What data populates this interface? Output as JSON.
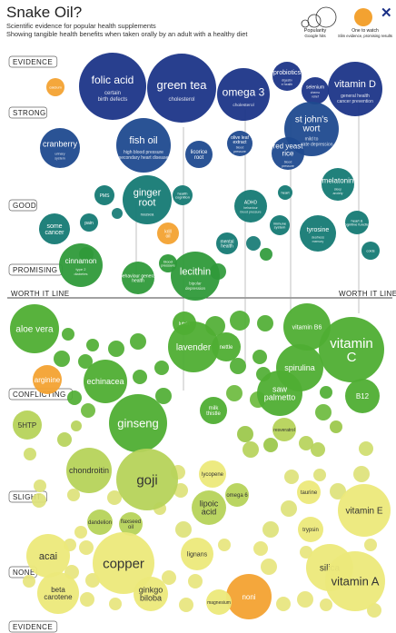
{
  "header": {
    "title": "Snake Oil?",
    "subtitle": "Scientific evidence for popular health supplements",
    "subtitle2": "Showing tangible health benefits when taken orally by an adult with a healthy diet",
    "legend_popularity": "Popularity",
    "legend_popularity_sub": "Google hits",
    "legend_watch": "One to watch",
    "legend_watch_sub": "Slim evidence, promising results",
    "close_icon": "close-icon"
  },
  "chart_data": {
    "type": "bubble",
    "y_axis_levels": [
      "EVIDENCE",
      "STRONG",
      "GOOD",
      "PROMISING",
      "CONFLICTING",
      "SLIGHT",
      "NONE",
      "EVIDENCE"
    ],
    "threshold_label_left": "WORTH IT LINE",
    "threshold_label_right": "WORTH IT LINE",
    "colors": {
      "strong": "#1c3588",
      "strong_mid": "#1f4a8f",
      "good": "#157a74",
      "promising": "#2f9a3a",
      "conflicting": "#4fae33",
      "slight": "#b6d35a",
      "none": "#ece97a",
      "watch": "#f3a231"
    },
    "bubbles": [
      {
        "name": "folic acid",
        "sub": "certain birth defects",
        "group": "strong"
      },
      {
        "name": "green tea",
        "sub": "cholesterol",
        "group": "strong"
      },
      {
        "name": "omega 3",
        "sub": "cholesterol",
        "group": "strong"
      },
      {
        "name": "probiotics",
        "sub": "digestive health",
        "group": "strong"
      },
      {
        "name": "selenium",
        "sub": "chemo relief",
        "group": "strong"
      },
      {
        "name": "vitamin D",
        "sub": "general health cancer prevention",
        "group": "strong"
      },
      {
        "name": "calcium",
        "sub": "",
        "group": "watch"
      },
      {
        "name": "fish oil",
        "sub": "high blood pressure secondary heart disease",
        "group": "strong2"
      },
      {
        "name": "cranberry",
        "sub": "urinary system",
        "group": "strong2"
      },
      {
        "name": "licorice root",
        "sub": "",
        "group": "strong2"
      },
      {
        "name": "olive leaf extract",
        "sub": "blood pressure",
        "group": "strong2"
      },
      {
        "name": "st john's wort",
        "sub": "mild to moderate depression",
        "group": "strong2"
      },
      {
        "name": "red yeast rice",
        "sub": "blood pressure",
        "group": "strong2"
      },
      {
        "name": "ginger root",
        "sub": "nausea",
        "group": "good"
      },
      {
        "name": "health cognition",
        "sub": "",
        "group": "good"
      },
      {
        "name": "PMS",
        "sub": "",
        "group": "good"
      },
      {
        "name": "ADHD",
        "sub": "behaviour blood pressure",
        "group": "good"
      },
      {
        "name": "heart",
        "sub": "",
        "group": "good"
      },
      {
        "name": "melatonin",
        "sub": "sleep anxiety",
        "group": "good"
      },
      {
        "name": "pain",
        "sub": "",
        "group": "good"
      },
      {
        "name": "some cancer",
        "sub": "",
        "group": "good"
      },
      {
        "name": "krill oil",
        "sub": "",
        "group": "watch"
      },
      {
        "name": "mental health",
        "sub": "",
        "group": "good"
      },
      {
        "name": "immune system",
        "sub": "",
        "group": "good"
      },
      {
        "name": "tyrosine",
        "sub": "deafness memory",
        "group": "good"
      },
      {
        "name": "heart & cognitive function",
        "sub": "",
        "group": "good"
      },
      {
        "name": "colds",
        "sub": "",
        "group": "good"
      },
      {
        "name": "cinnamon",
        "sub": "type 2 diabetes",
        "group": "promising"
      },
      {
        "name": "behaviour general health",
        "sub": "",
        "group": "promising"
      },
      {
        "name": "lecithin",
        "sub": "bipolar depression",
        "group": "promising"
      },
      {
        "name": "blood pressure",
        "sub": "",
        "group": "promising"
      },
      {
        "name": "aloe vera",
        "sub": "",
        "group": "conflicting"
      },
      {
        "name": "lutein",
        "sub": "",
        "group": "conflicting"
      },
      {
        "name": "lavender",
        "sub": "",
        "group": "conflicting"
      },
      {
        "name": "nettle",
        "sub": "",
        "group": "conflicting"
      },
      {
        "name": "vitamin B6",
        "sub": "",
        "group": "conflicting"
      },
      {
        "name": "vitamin C",
        "sub": "",
        "group": "conflicting"
      },
      {
        "name": "spirulina",
        "sub": "",
        "group": "conflicting"
      },
      {
        "name": "echinacea",
        "sub": "",
        "group": "conflicting"
      },
      {
        "name": "arginine",
        "sub": "",
        "group": "watch"
      },
      {
        "name": "saw palmetto",
        "sub": "",
        "group": "conflicting"
      },
      {
        "name": "B12",
        "sub": "",
        "group": "conflicting"
      },
      {
        "name": "milk thistle",
        "sub": "",
        "group": "conflicting"
      },
      {
        "name": "ginseng",
        "sub": "",
        "group": "conflicting"
      },
      {
        "name": "5HTP",
        "sub": "",
        "group": "slight"
      },
      {
        "name": "resveratrol",
        "sub": "",
        "group": "slight"
      },
      {
        "name": "chondroitin",
        "sub": "",
        "group": "slight"
      },
      {
        "name": "goji",
        "sub": "",
        "group": "slight"
      },
      {
        "name": "lycopene",
        "sub": "",
        "group": "none"
      },
      {
        "name": "omega 6",
        "sub": "",
        "group": "slight"
      },
      {
        "name": "lipoic acid",
        "sub": "",
        "group": "slight"
      },
      {
        "name": "vitamin E",
        "sub": "",
        "group": "none"
      },
      {
        "name": "taurine",
        "sub": "",
        "group": "none"
      },
      {
        "name": "dandelion",
        "sub": "",
        "group": "slight"
      },
      {
        "name": "flaxseed oil",
        "sub": "",
        "group": "slight"
      },
      {
        "name": "acai",
        "sub": "",
        "group": "none"
      },
      {
        "name": "copper",
        "sub": "",
        "group": "none"
      },
      {
        "name": "trypsin",
        "sub": "",
        "group": "none"
      },
      {
        "name": "silica",
        "sub": "",
        "group": "none"
      },
      {
        "name": "lignans",
        "sub": "",
        "group": "none"
      },
      {
        "name": "beta carotene",
        "sub": "",
        "group": "none"
      },
      {
        "name": "ginkgo biloba",
        "sub": "",
        "group": "none"
      },
      {
        "name": "noni",
        "sub": "",
        "group": "watch"
      },
      {
        "name": "vitamin A",
        "sub": "",
        "group": "none"
      },
      {
        "name": "magnesium",
        "sub": "",
        "group": "none"
      }
    ]
  }
}
